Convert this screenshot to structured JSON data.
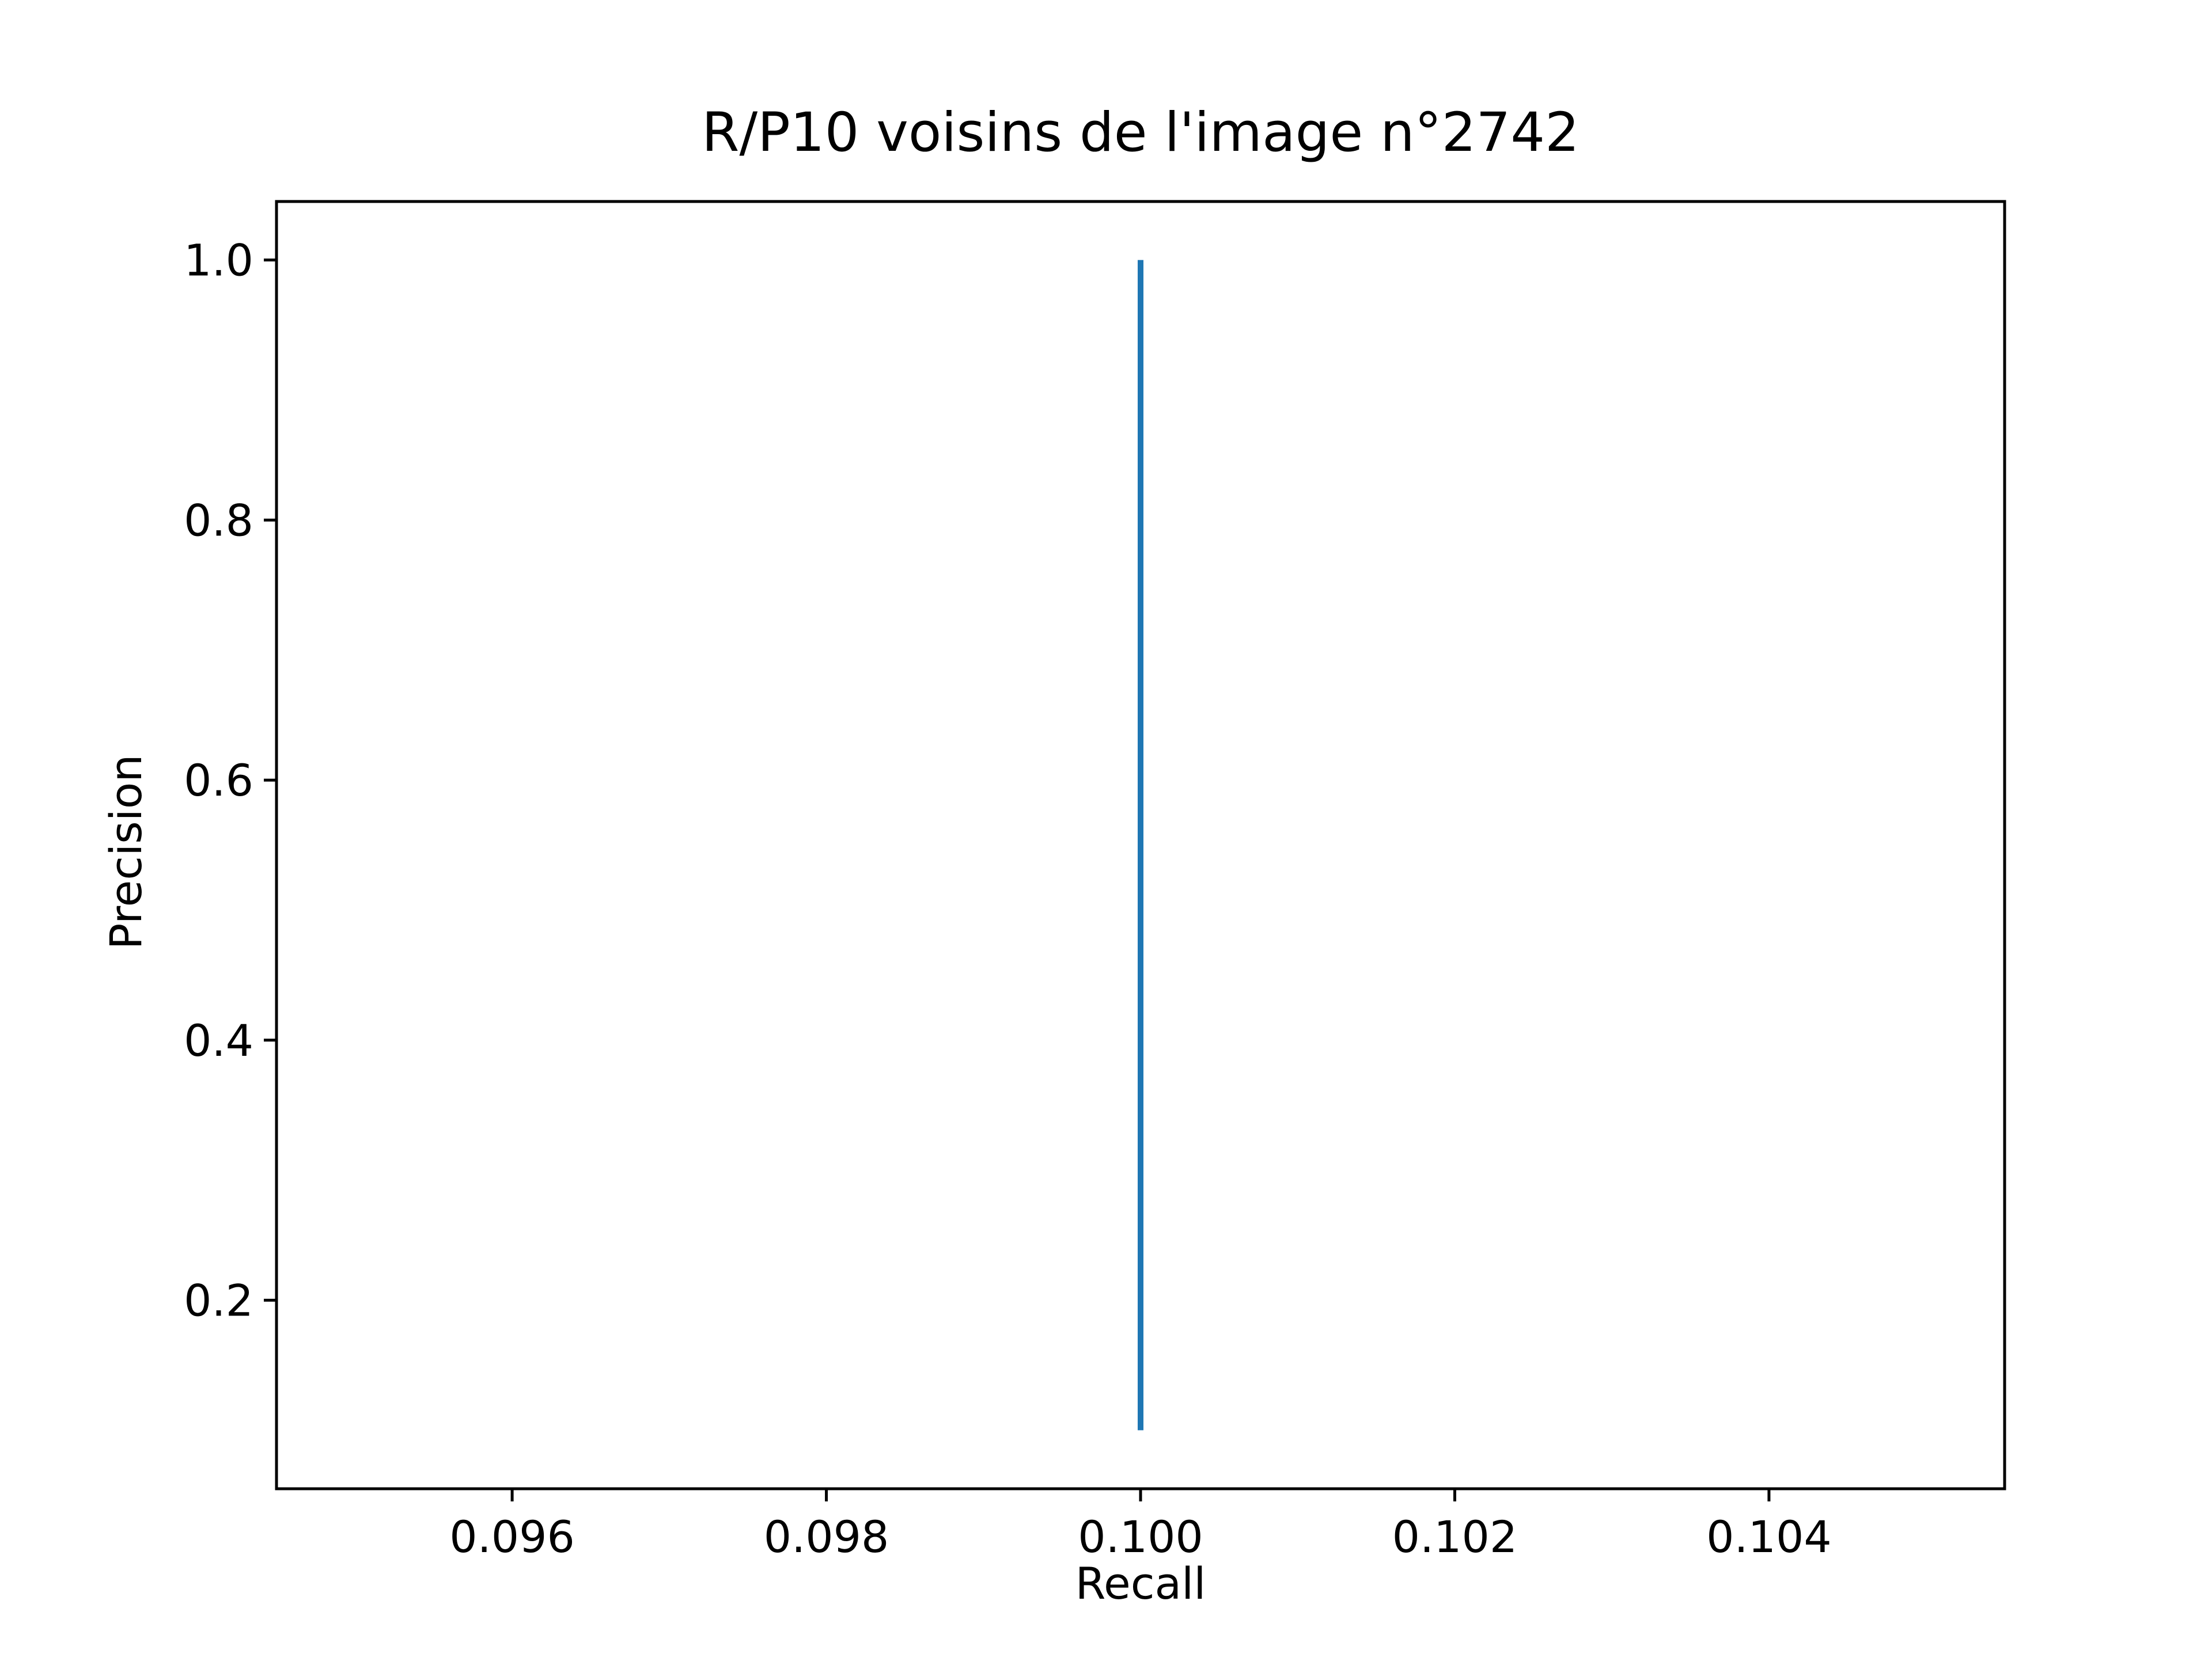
{
  "chart_data": {
    "type": "line",
    "title": "R/P10 voisins de l'image n°2742",
    "xlabel": "Recall",
    "ylabel": "Precision",
    "xlim": [
      0.0945,
      0.1055
    ],
    "ylim": [
      0.055,
      1.045
    ],
    "x_ticks": [
      0.096,
      0.098,
      0.1,
      0.102,
      0.104
    ],
    "x_tick_labels": [
      "0.096",
      "0.098",
      "0.100",
      "0.102",
      "0.104"
    ],
    "y_ticks": [
      0.2,
      0.4,
      0.6,
      0.8,
      1.0
    ],
    "y_tick_labels": [
      "0.2",
      "0.4",
      "0.6",
      "0.8",
      "1.0"
    ],
    "grid": false,
    "series": [
      {
        "color": "#1f77b4",
        "x": [
          0.1,
          0.1,
          0.1,
          0.1,
          0.1,
          0.1,
          0.1,
          0.1,
          0.1,
          0.1
        ],
        "y": [
          1.0,
          0.9,
          0.8,
          0.7,
          0.6,
          0.5,
          0.4,
          0.3,
          0.2,
          0.1
        ]
      }
    ]
  }
}
